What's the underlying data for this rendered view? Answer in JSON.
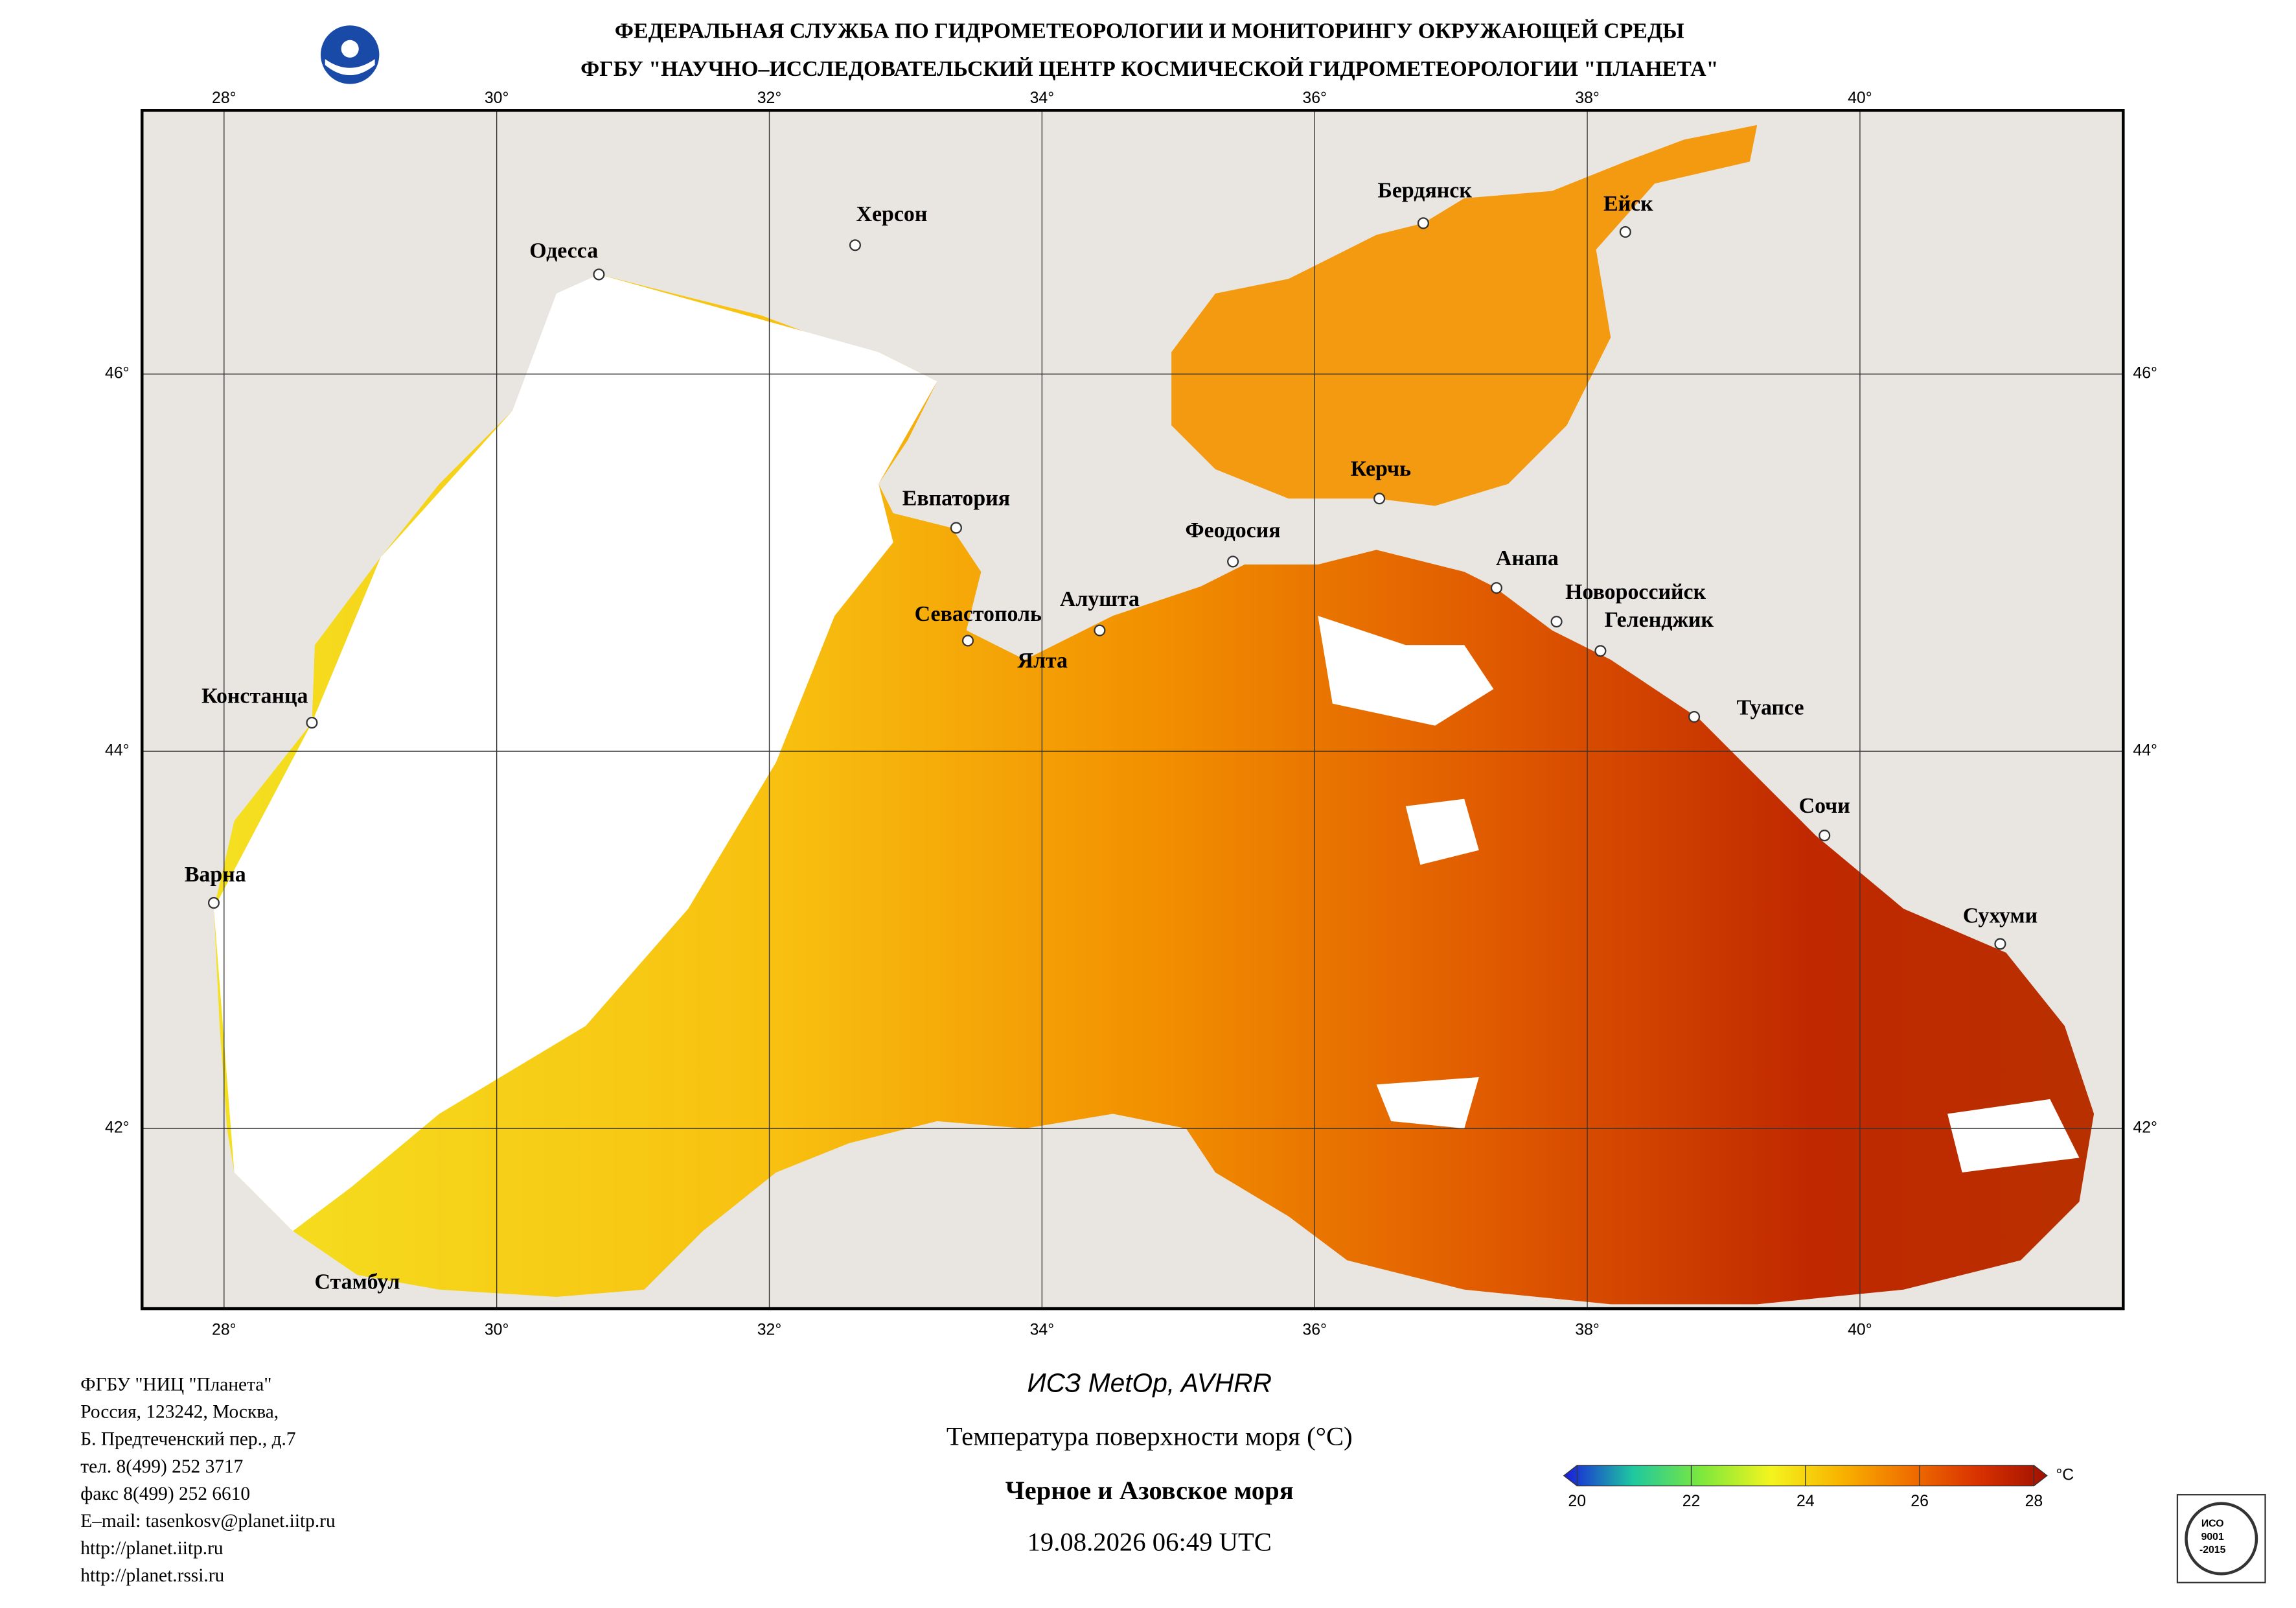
{
  "header": {
    "lines": [
      "ФЕДЕРАЛЬНАЯ СЛУЖБА ПО ГИДРОМЕТЕОРОЛОГИИ И МОНИТОРИНГУ ОКРУЖАЮЩЕЙ СРЕДЫ",
      "ФГБУ \"НАУЧНО–ИССЛЕДОВАТЕЛЬСКИЙ ЦЕНТР КОСМИЧЕСКОЙ ГИДРОМЕТЕОРОЛОГИИ \"ПЛАНЕТА\""
    ]
  },
  "map": {
    "lon_ticks": [
      {
        "value": 28,
        "label": "28°"
      },
      {
        "value": 30,
        "label": "30°"
      },
      {
        "value": 32,
        "label": "32°"
      },
      {
        "value": 34,
        "label": "34°"
      },
      {
        "value": 36,
        "label": "36°"
      },
      {
        "value": 38,
        "label": "38°"
      },
      {
        "value": 40,
        "label": "40°"
      }
    ],
    "lat_ticks": [
      {
        "value": 46,
        "label": "46°"
      },
      {
        "value": 44,
        "label": "44°"
      },
      {
        "value": 42,
        "label": "42°"
      }
    ],
    "cities": [
      "Одесса",
      "Херсон",
      "Бердянск",
      "Ейск",
      "Керчь",
      "Евпатория",
      "Феодосия",
      "Анапа",
      "Новороссийск",
      "Геленджик",
      "Алушта",
      "Севастополь",
      "Ялта",
      "Туапсе",
      "Сочи",
      "Сухуми",
      "Констанца",
      "Варна",
      "Стамбул"
    ]
  },
  "footer": {
    "contact": [
      "ФГБУ \"НИЦ \"Планета\"",
      "Россия, 123242, Москва,",
      "Б. Предтеченский пер., д.7",
      "тел. 8(499) 252 3717",
      "факс 8(499) 252 6610",
      "E–mail: tasenkosv@planet.iitp.ru",
      "http://planet.iitp.ru",
      "http://planet.rssi.ru"
    ],
    "satellite": "ИСЗ MetOp, AVHRR",
    "parameter": "Температура поверхности моря (°C)",
    "region": "Черное и Азовское моря",
    "datetime": "19.08.2026 06:49 UTC"
  },
  "colorbar": {
    "ticks": [
      20,
      22,
      24,
      26,
      28
    ],
    "unit": "°C",
    "colors": [
      "#1a1adc",
      "#1ec8a0",
      "#7ee83c",
      "#f4f41e",
      "#f8b400",
      "#f07000",
      "#d83200",
      "#a01000"
    ]
  },
  "certificate": [
    "ИСО",
    "9001",
    "-2015"
  ]
}
